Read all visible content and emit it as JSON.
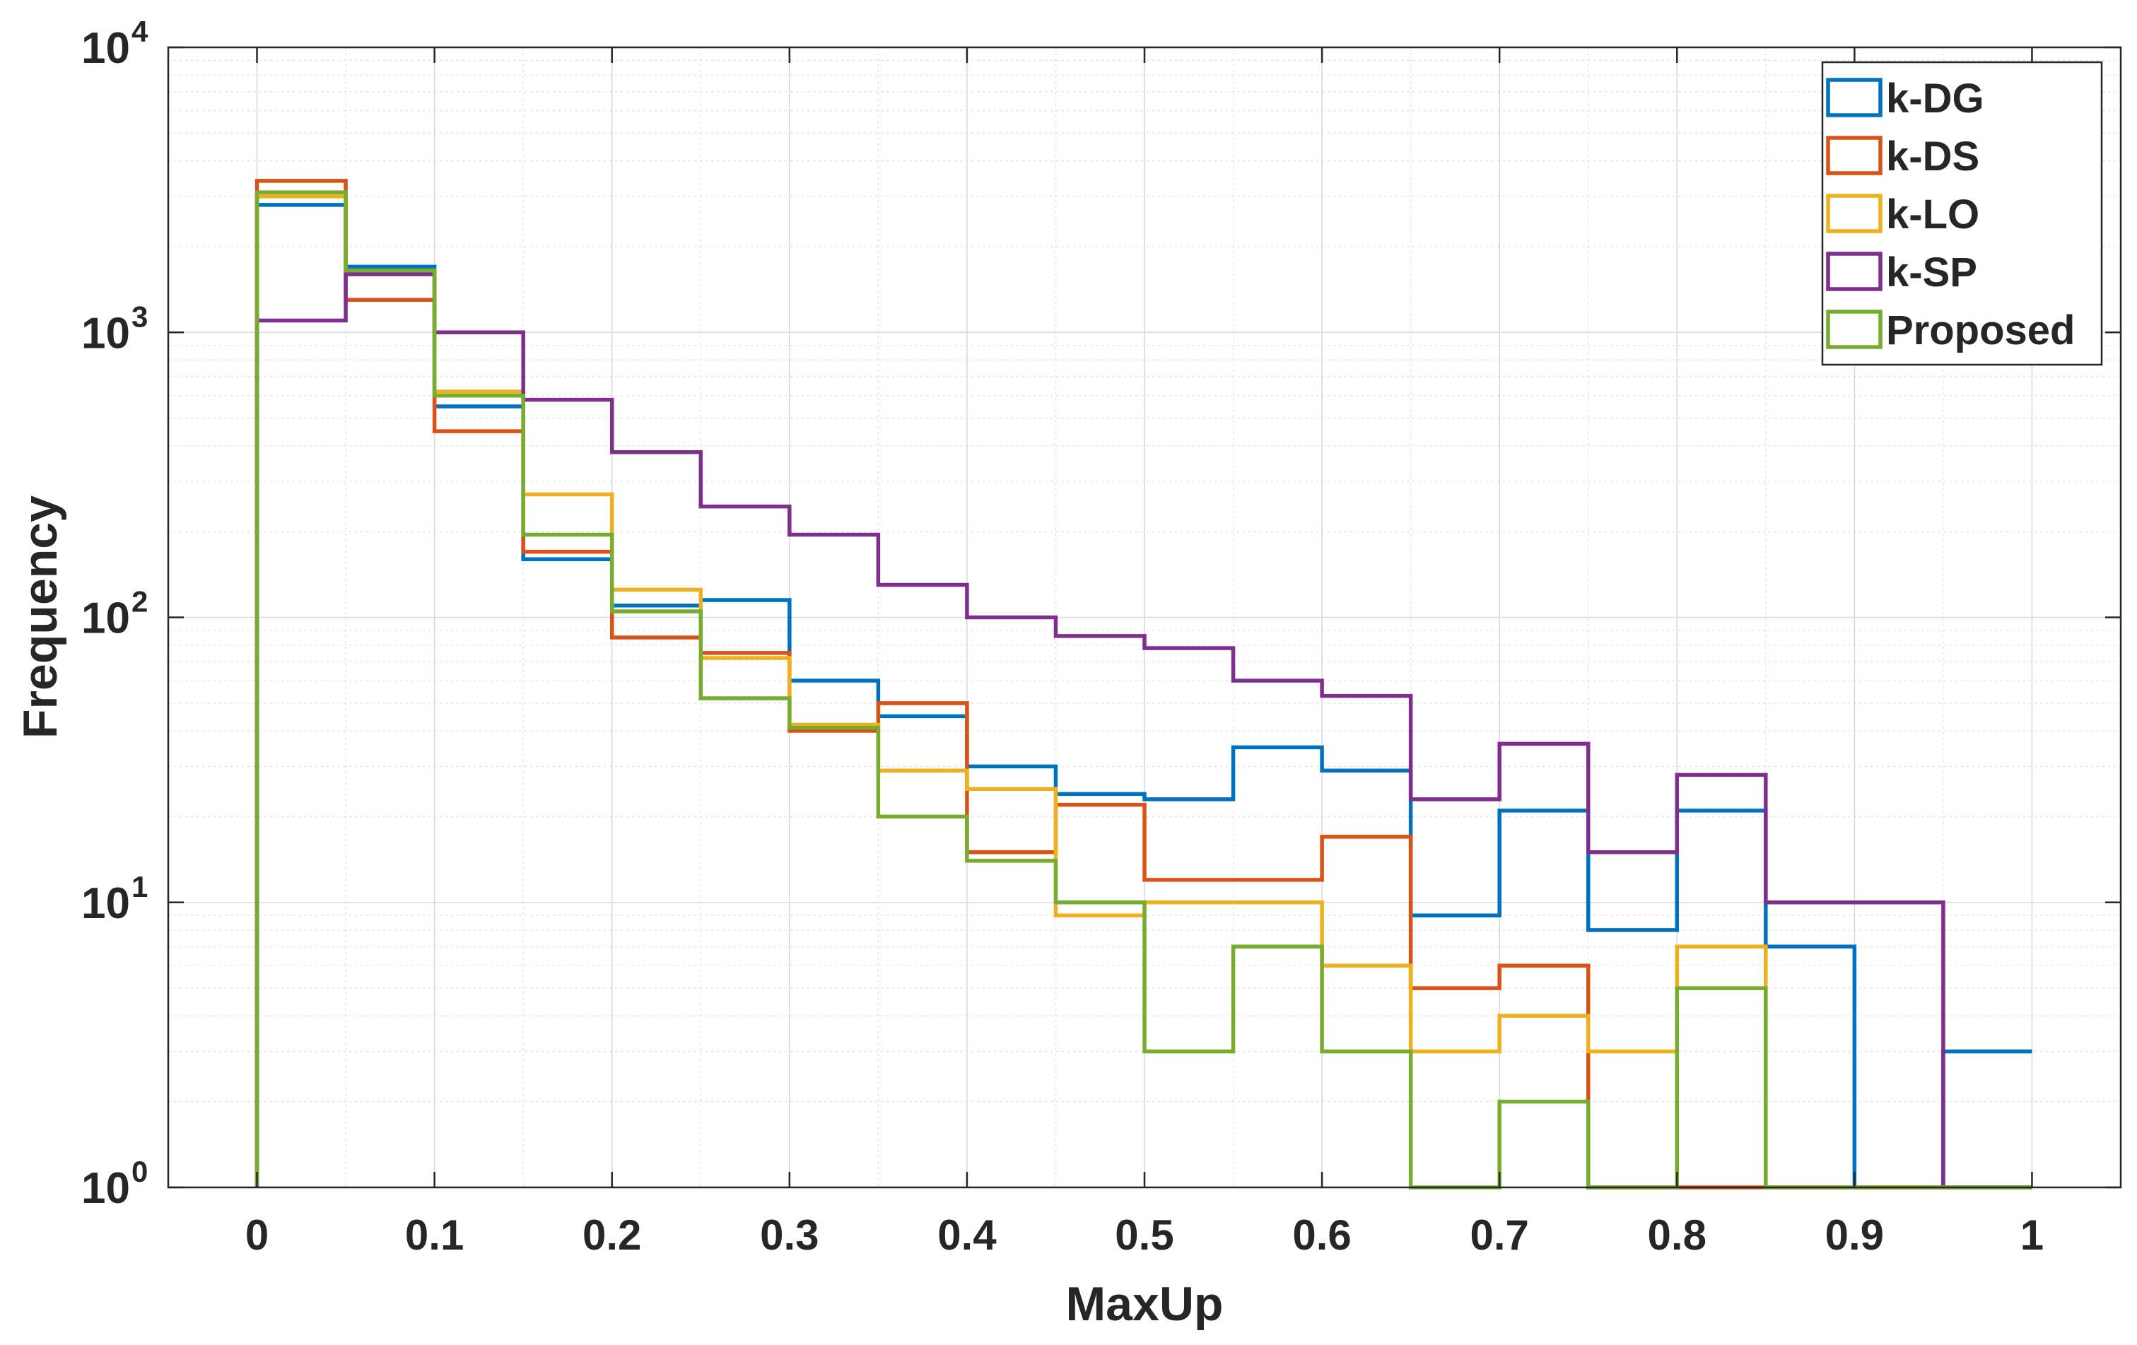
{
  "chart_data": {
    "type": "histogram-stairs",
    "title": "",
    "xlabel": "MaxUp",
    "ylabel": "Frequency",
    "xlim": [
      -0.05,
      1.05
    ],
    "ylim": [
      1,
      10000
    ],
    "yscale": "log",
    "grid": true,
    "minor_grid": true,
    "legend_position": "top-right",
    "bin_edges": [
      0,
      0.05,
      0.1,
      0.15,
      0.2,
      0.25,
      0.3,
      0.35,
      0.4,
      0.45,
      0.5,
      0.55,
      0.6,
      0.65,
      0.7,
      0.75,
      0.8,
      0.85,
      0.9,
      0.95,
      1.0
    ],
    "x_ticks": [
      {
        "value": 0,
        "label": "0"
      },
      {
        "value": 0.1,
        "label": "0.1"
      },
      {
        "value": 0.2,
        "label": "0.2"
      },
      {
        "value": 0.3,
        "label": "0.3"
      },
      {
        "value": 0.4,
        "label": "0.4"
      },
      {
        "value": 0.5,
        "label": "0.5"
      },
      {
        "value": 0.6,
        "label": "0.6"
      },
      {
        "value": 0.7,
        "label": "0.7"
      },
      {
        "value": 0.8,
        "label": "0.8"
      },
      {
        "value": 0.9,
        "label": "0.9"
      },
      {
        "value": 1,
        "label": "1"
      }
    ],
    "y_ticks": [
      {
        "value": 1,
        "base": "10",
        "exp": "0"
      },
      {
        "value": 10,
        "base": "10",
        "exp": "1"
      },
      {
        "value": 100,
        "base": "10",
        "exp": "2"
      },
      {
        "value": 1000,
        "base": "10",
        "exp": "3"
      },
      {
        "value": 10000,
        "base": "10",
        "exp": "4"
      }
    ],
    "series": [
      {
        "name": "k-DG",
        "color": "#0072BD",
        "values": [
          2800,
          1700,
          550,
          160,
          110,
          115,
          60,
          45,
          30,
          24,
          23,
          35,
          29,
          9,
          21,
          8,
          21,
          7,
          1,
          3
        ]
      },
      {
        "name": "k-DS",
        "color": "#D95319",
        "values": [
          3400,
          1300,
          450,
          170,
          85,
          75,
          40,
          50,
          15,
          22,
          12,
          12,
          17,
          5,
          6,
          1,
          1,
          1,
          1,
          1
        ]
      },
      {
        "name": "k-LO",
        "color": "#EDB120",
        "values": [
          3000,
          1600,
          620,
          270,
          125,
          72,
          42,
          29,
          25,
          9,
          10,
          10,
          6,
          3,
          4,
          3,
          7,
          1,
          1,
          1
        ]
      },
      {
        "name": "k-SP",
        "color": "#7E2F8E",
        "values": [
          1100,
          1600,
          1000,
          580,
          380,
          245,
          195,
          130,
          100,
          86,
          78,
          60,
          53,
          23,
          36,
          15,
          28,
          10,
          10,
          1
        ]
      },
      {
        "name": "Proposed",
        "color": "#77AC30",
        "values": [
          3100,
          1650,
          600,
          195,
          105,
          52,
          41,
          20,
          14,
          10,
          3,
          7,
          3,
          1,
          2,
          1,
          5,
          1,
          1,
          1
        ]
      }
    ]
  }
}
